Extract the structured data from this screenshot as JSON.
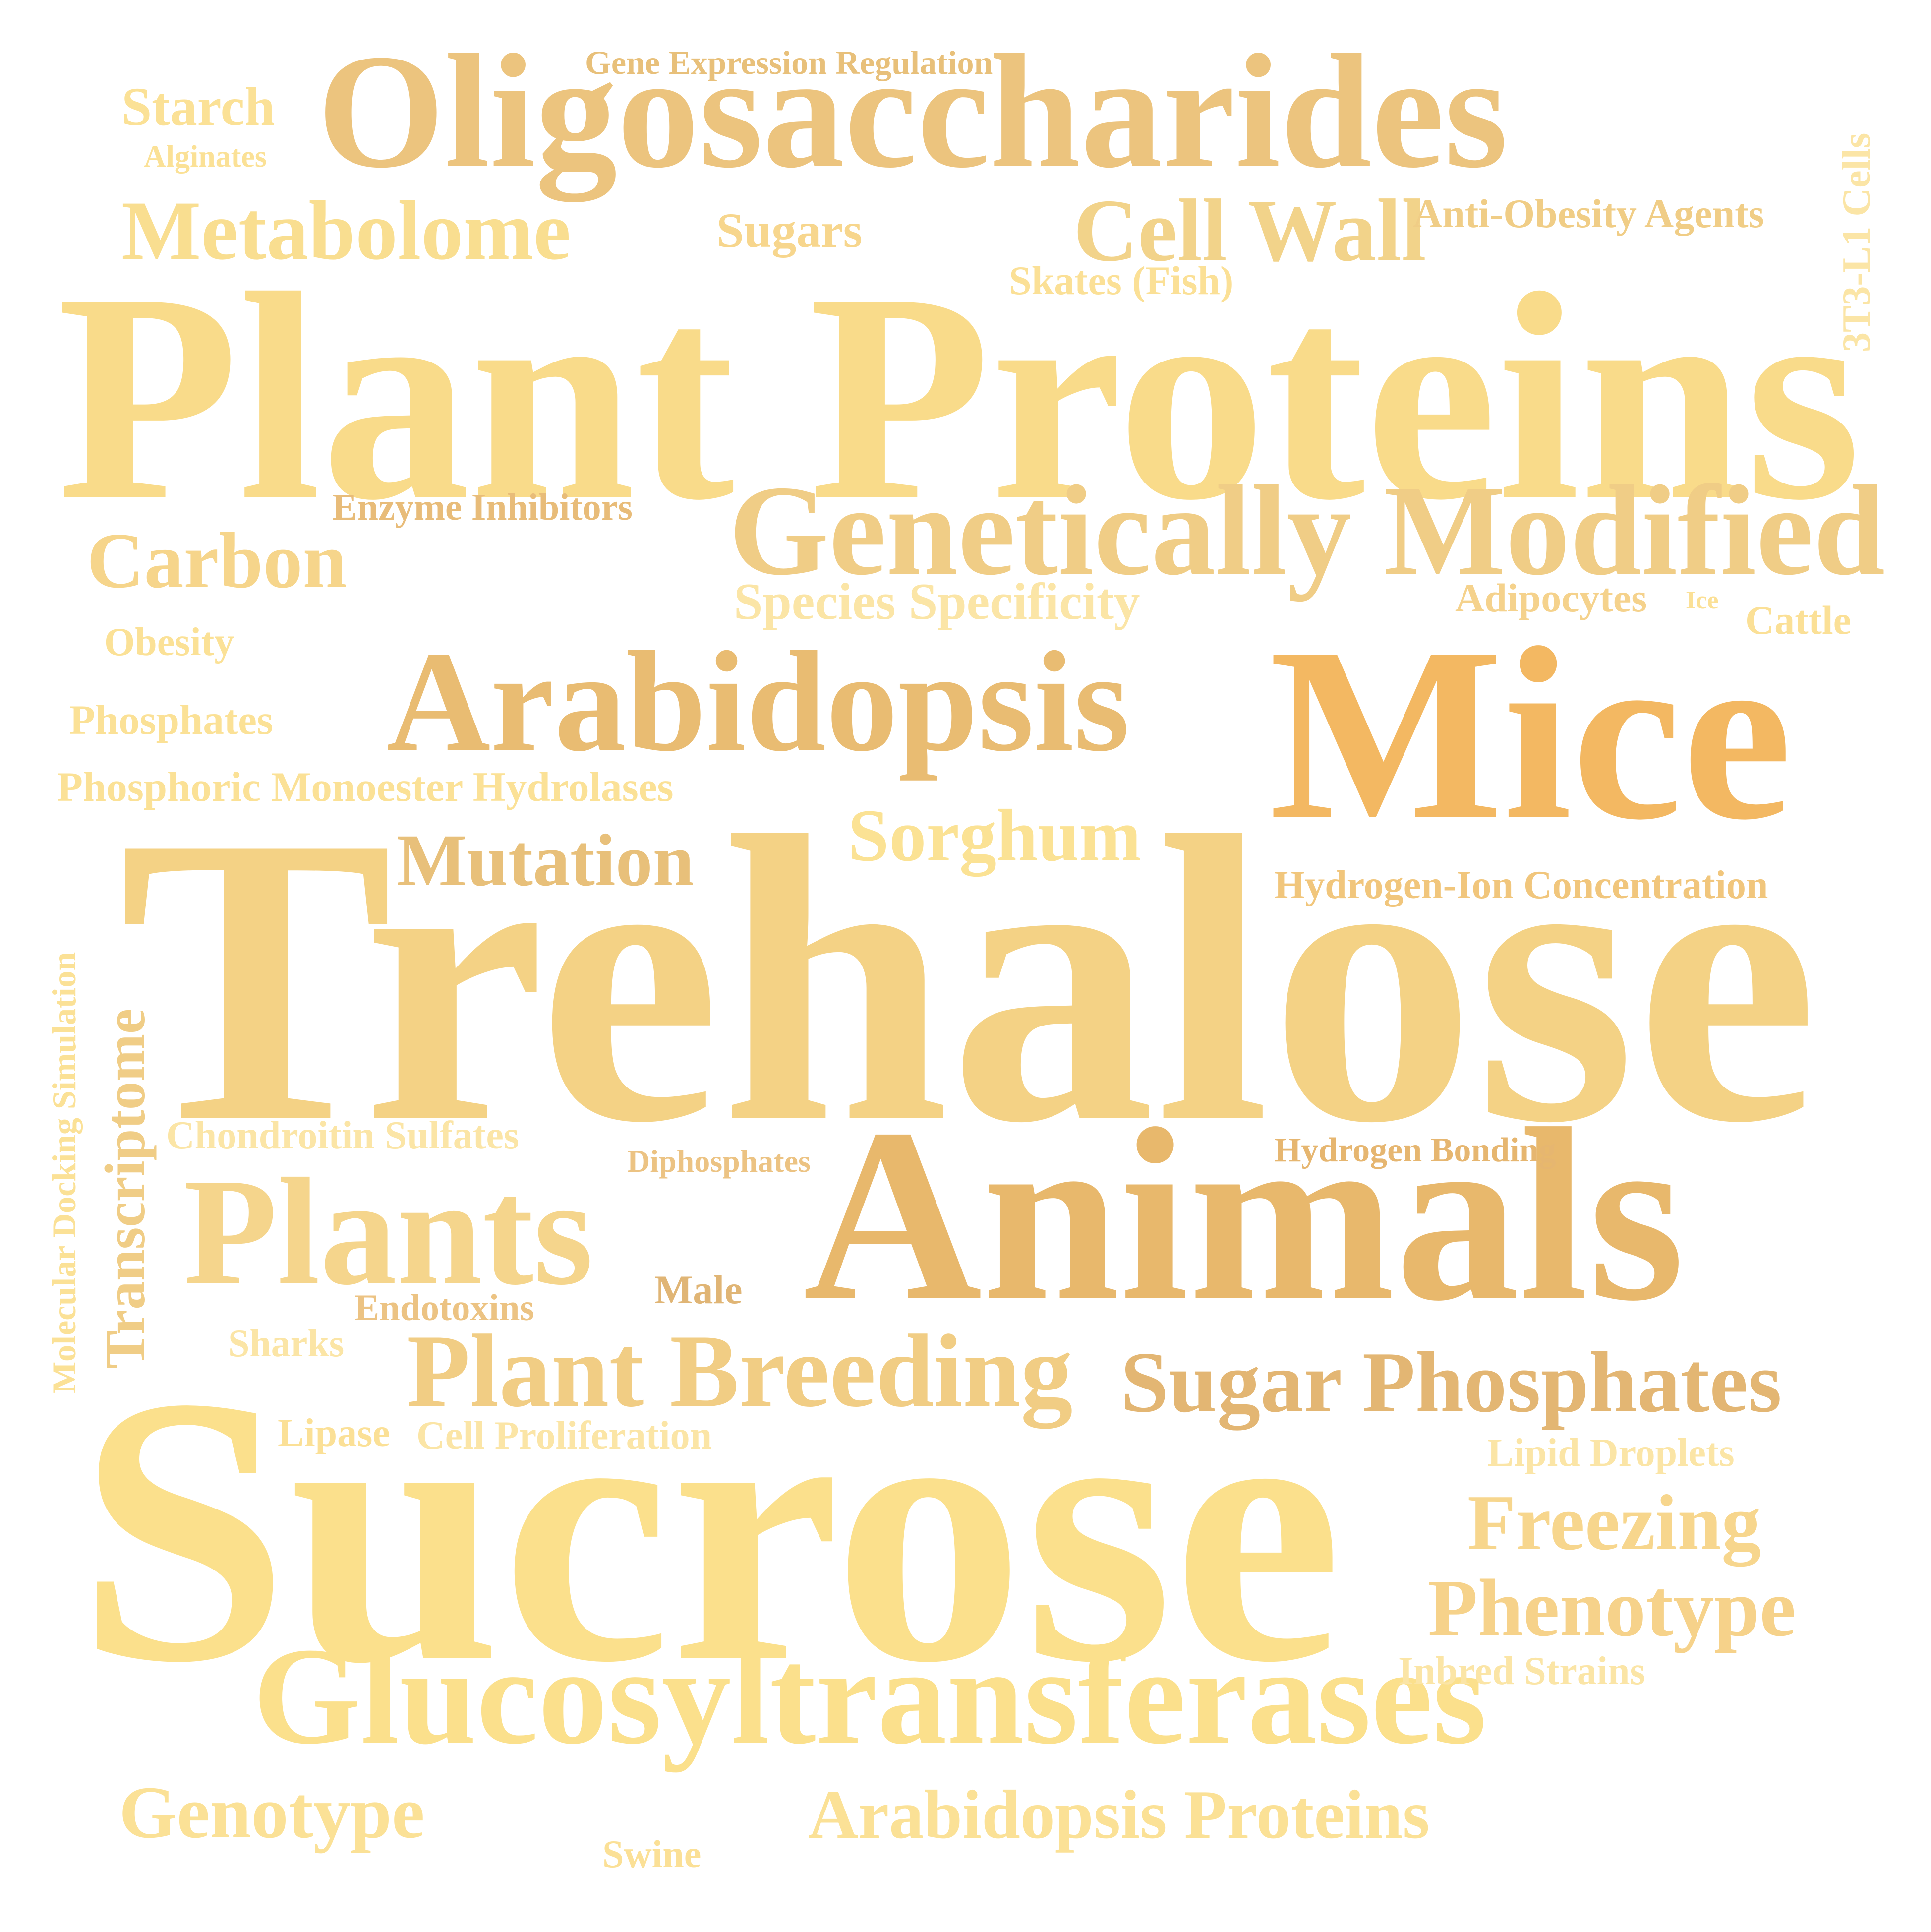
{
  "words": {
    "plant_proteins": {
      "text": "Plant Proteins",
      "color": "#f9db8a"
    },
    "oligosaccharides": {
      "text": "Oligosaccharides",
      "color": "#ecc47e"
    },
    "trehalose": {
      "text": "Trehalose",
      "color": "#f4d285"
    },
    "sucrose": {
      "text": "Sucrose",
      "color": "#fbe08c"
    },
    "mice": {
      "text": "Mice",
      "color": "#f3b862"
    },
    "animals": {
      "text": "Animals",
      "color": "#e8b86c"
    },
    "arabidopsis": {
      "text": "Arabidopsis",
      "color": "#e9bc72"
    },
    "genetically": {
      "text": "Genetically Modified",
      "color": "#f0cd86"
    },
    "glucosyl": {
      "text": "Glucosyltransferases",
      "color": "#fbe08c"
    },
    "plants": {
      "text": "Plants",
      "color": "#f5d58c"
    },
    "plant_breeding": {
      "text": "Plant Breeding",
      "color": "#f1cd84"
    },
    "sugar_phosphates": {
      "text": "Sugar Phosphates",
      "color": "#e3b673"
    },
    "metabolome": {
      "text": "Metabolome",
      "color": "#f9de90"
    },
    "cell_wall": {
      "text": "Cell Wall",
      "color": "#f2d38a"
    },
    "carbon": {
      "text": "Carbon",
      "color": "#f6d58b"
    },
    "mutation": {
      "text": "Mutation",
      "color": "#e8c07a"
    },
    "sorghum": {
      "text": "Sorghum",
      "color": "#fbe294"
    },
    "freezing": {
      "text": "Freezing",
      "color": "#f7d68d"
    },
    "phenotype": {
      "text": "Phenotype",
      "color": "#f6d28a"
    },
    "genotype": {
      "text": "Genotype",
      "color": "#fbe196"
    },
    "arab_proteins": {
      "text": "Arabidopsis Proteins",
      "color": "#fbe196"
    },
    "starch": {
      "text": "Starch",
      "color": "#fbe196"
    },
    "sugars": {
      "text": "Sugars",
      "color": "#f7d68d"
    },
    "species": {
      "text": "Species Specificity",
      "color": "#fbe5a6"
    },
    "anti_obesity": {
      "text": "Anti-Obesity Agents",
      "color": "#f0cd86"
    },
    "skates": {
      "text": "Skates (Fish)",
      "color": "#fbe096"
    },
    "gene_expression": {
      "text": "Gene Expression Regulation",
      "color": "#e8c07a"
    },
    "alginates": {
      "text": "Alginates",
      "color": "#fbe196"
    },
    "enzyme_inhibitors": {
      "text": "Enzyme Inhibitors",
      "color": "#e8bc79"
    },
    "adipocytes": {
      "text": "Adipocytes",
      "color": "#f5d28c"
    },
    "ice": {
      "text": "Ice",
      "color": "#fbe096"
    },
    "cattle": {
      "text": "Cattle",
      "color": "#fbe096"
    },
    "obesity": {
      "text": "Obesity",
      "color": "#fbe196"
    },
    "phosphates": {
      "text": "Phosphates",
      "color": "#fbe196"
    },
    "phosphoric": {
      "text": "Phosphoric Monoester Hydrolases",
      "color": "#fbe196"
    },
    "hydrogen_ion": {
      "text": "Hydrogen-Ion Concentration",
      "color": "#f1c67c"
    },
    "chondroitin": {
      "text": "Chondroitin Sulfates",
      "color": "#fbe5a6"
    },
    "diphosphates": {
      "text": "Diphosphates",
      "color": "#ecc383"
    },
    "hydrogen_bonding": {
      "text": "Hydrogen Bonding",
      "color": "#e6b670"
    },
    "male": {
      "text": "Male",
      "color": "#e0b575"
    },
    "endotoxins": {
      "text": "Endotoxins",
      "color": "#ecc383"
    },
    "sharks": {
      "text": "Sharks",
      "color": "#fbe5a6"
    },
    "lipase": {
      "text": "Lipase",
      "color": "#fbe096"
    },
    "cell_proliferation": {
      "text": "Cell Proliferation",
      "color": "#fbe5a6"
    },
    "lipid_droplets": {
      "text": "Lipid Droplets",
      "color": "#fbe5a6"
    },
    "inbred_strains": {
      "text": "Inbred Strains",
      "color": "#fbe5a6"
    },
    "swine": {
      "text": "Swine",
      "color": "#fbe096"
    },
    "t3_l1": {
      "text": "3T3-L1 Cells",
      "color": "#fbe5a6"
    },
    "transcriptome": {
      "text": "Transcriptome",
      "color": "#f0cd86"
    },
    "molecular_docking": {
      "text": "Molecular Docking Simulation",
      "color": "#fbe196"
    }
  }
}
